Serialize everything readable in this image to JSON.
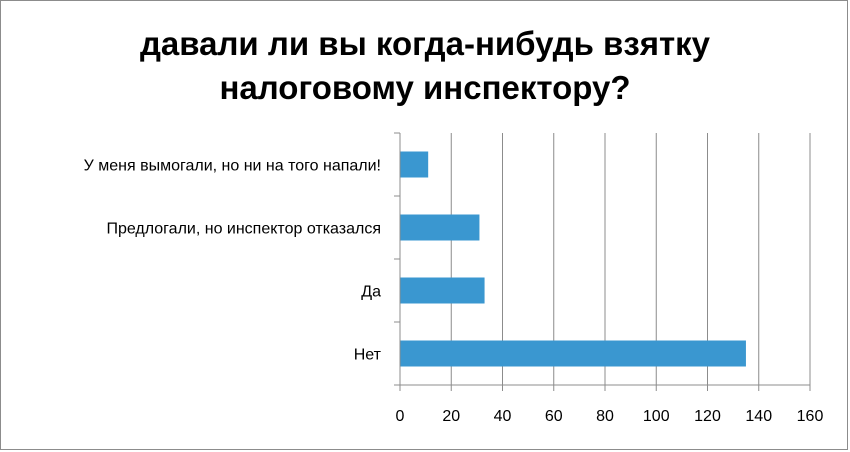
{
  "chart_data": {
    "type": "bar",
    "orientation": "horizontal",
    "title_lines": [
      "давали ли вы когда-нибудь взятку",
      "налоговому инспектору?"
    ],
    "categories": [
      "У меня вымогали, но ни на того напали!",
      "Предлогали, но инспектор отказался",
      "Да",
      "Нет"
    ],
    "values": [
      11,
      31,
      33,
      135
    ],
    "xlim": [
      0,
      160
    ],
    "xticks": [
      0,
      20,
      40,
      60,
      80,
      100,
      120,
      140,
      160
    ],
    "grid": "vertical",
    "legend": "none",
    "bar_color": "#3a97d0"
  }
}
